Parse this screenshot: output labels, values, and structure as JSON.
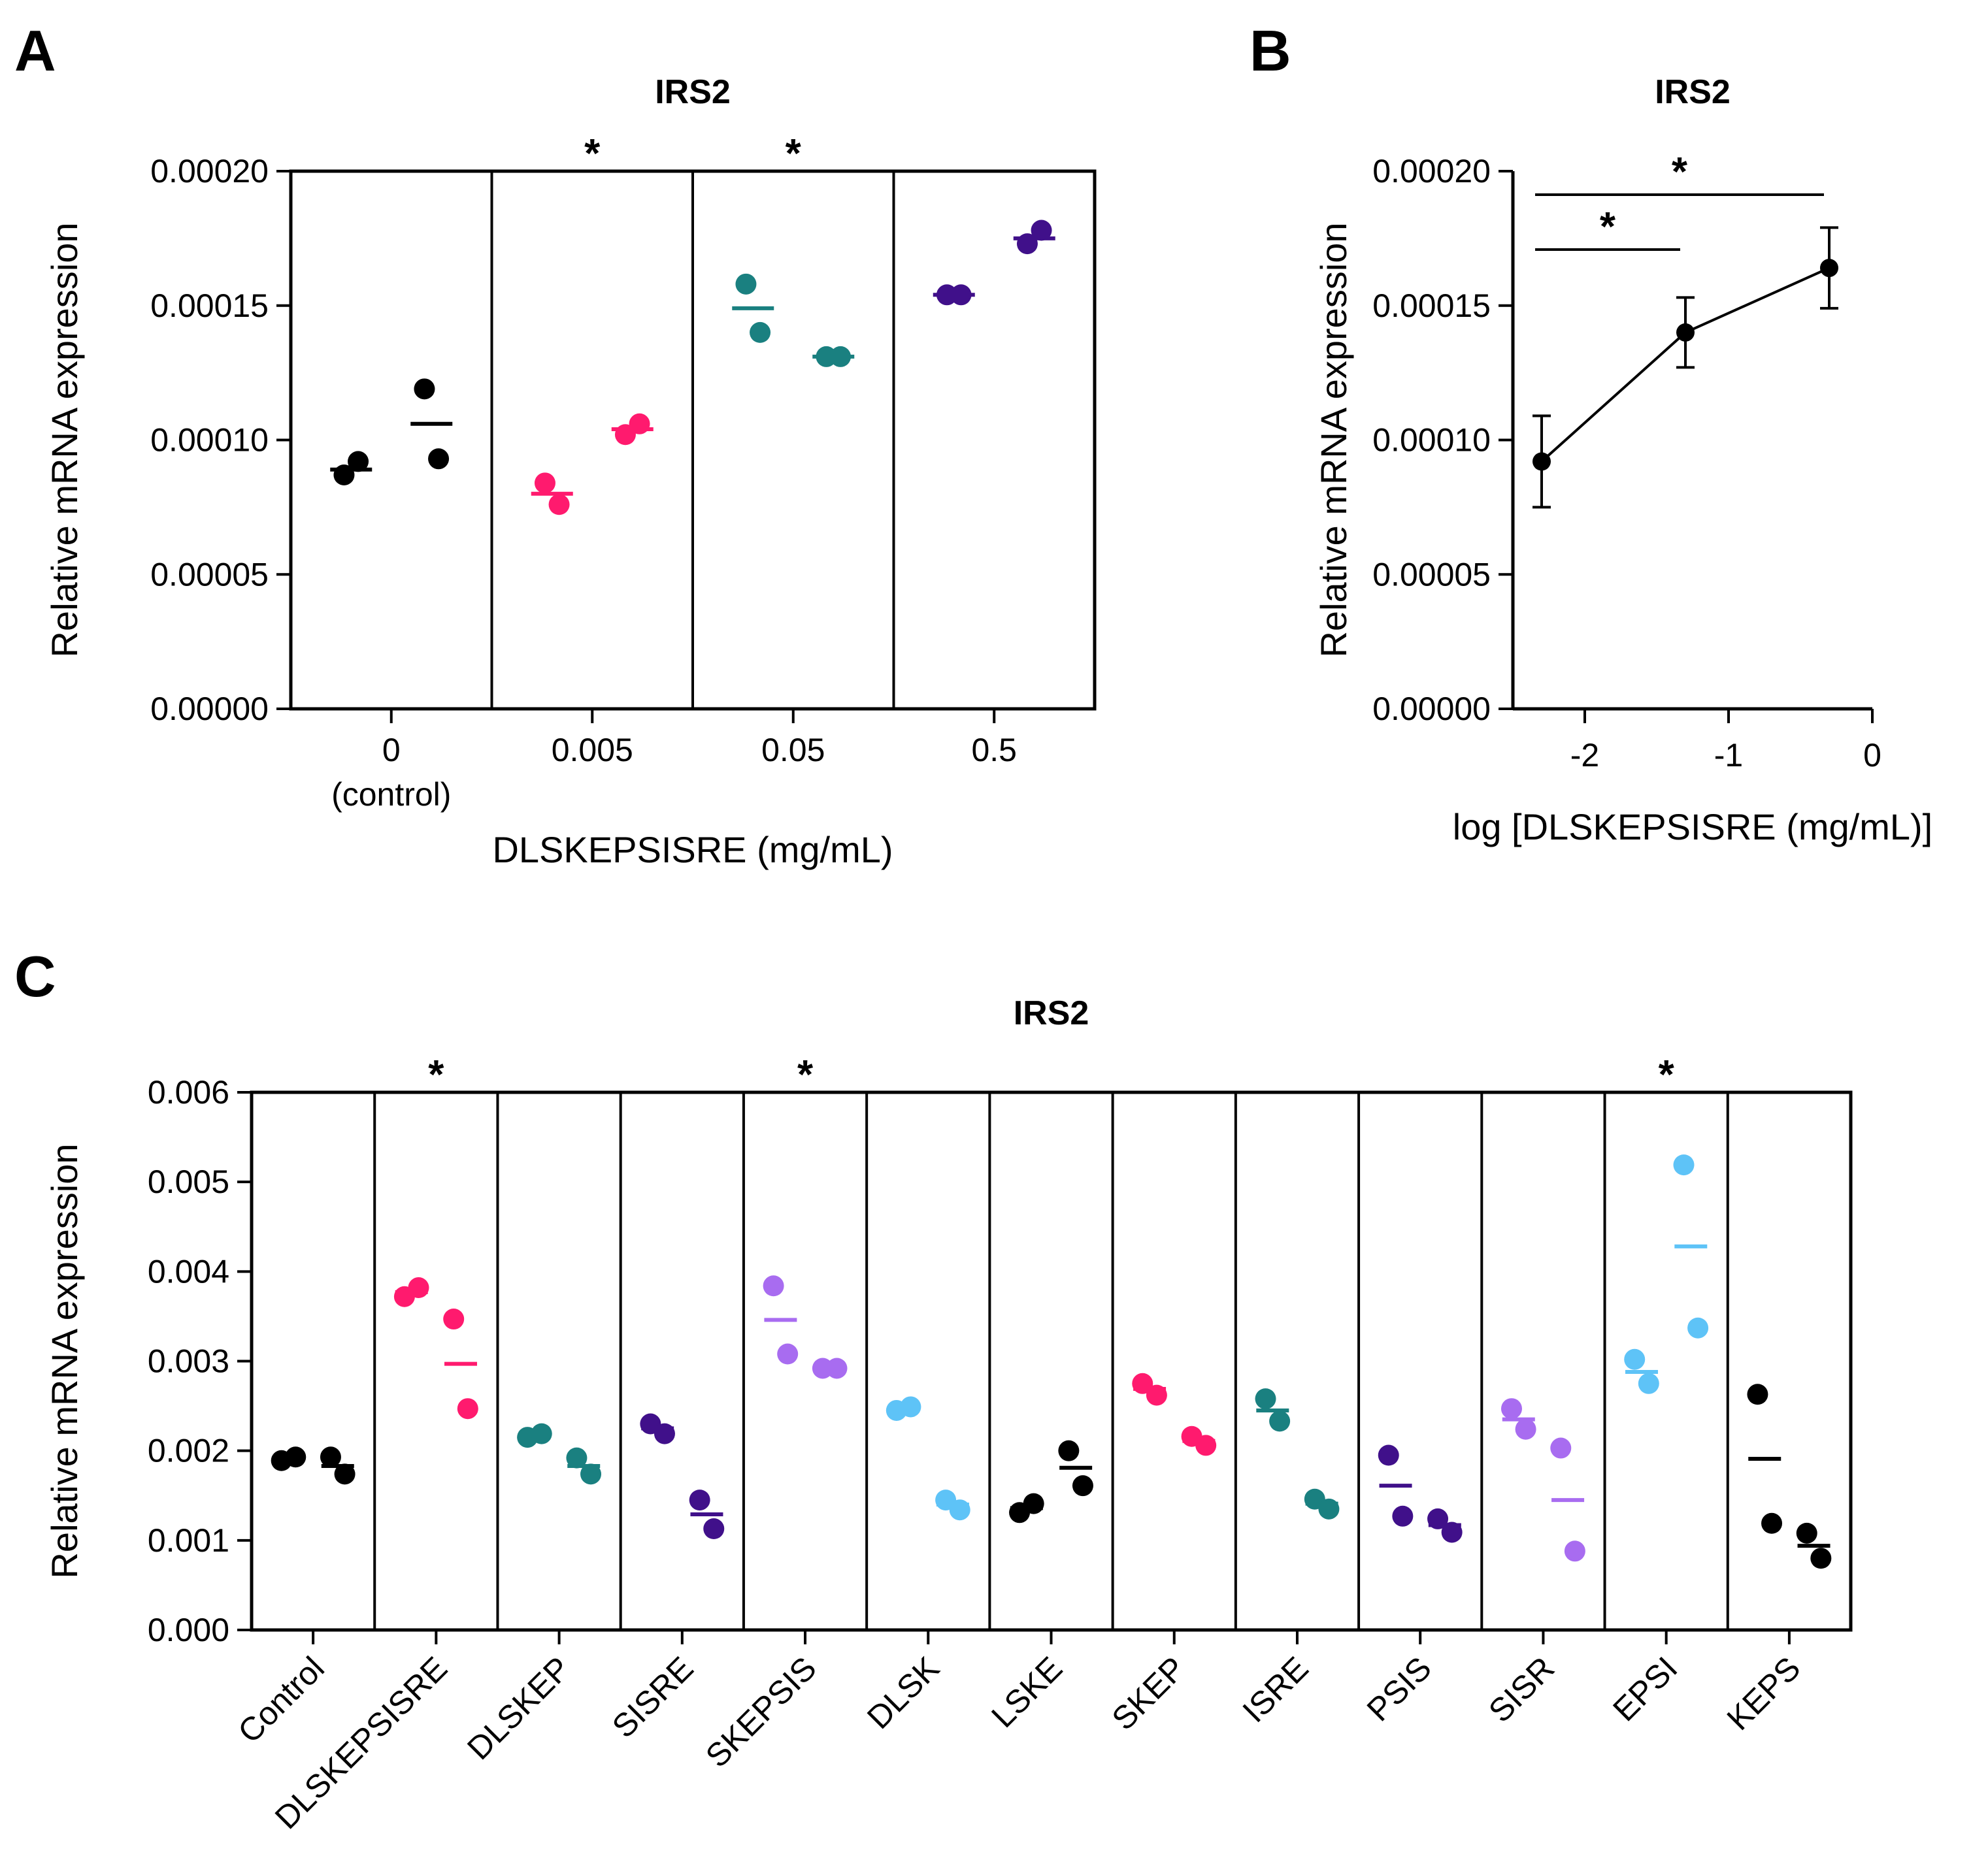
{
  "chart_data": [
    {
      "panel": "A",
      "type": "scatter",
      "title": "IRS2",
      "ylabel": "Relative mRNA expression",
      "xlabel": "DLSKEPSISRE (mg/mL)",
      "ylim": [
        0,
        0.0002
      ],
      "yticks": [
        "0.00000",
        "0.00005",
        "0.00010",
        "0.00015",
        "0.00020"
      ],
      "groups": [
        {
          "label": "0",
          "sublabel": "(control)",
          "color": "#000000",
          "significant": false,
          "replicates": [
            {
              "points": [
                8.7e-05,
                9.2e-05
              ],
              "mean": 8.9e-05
            },
            {
              "points": [
                0.000119,
                9.3e-05
              ],
              "mean": 0.000106
            }
          ]
        },
        {
          "label": "0.005",
          "color": "#ff1a6e",
          "significant": true,
          "replicates": [
            {
              "points": [
                8.4e-05,
                7.6e-05
              ],
              "mean": 8e-05
            },
            {
              "points": [
                0.000102,
                0.000106
              ],
              "mean": 0.000104
            }
          ]
        },
        {
          "label": "0.05",
          "color": "#1a8080",
          "significant": true,
          "replicates": [
            {
              "points": [
                0.000158,
                0.00014
              ],
              "mean": 0.000149
            },
            {
              "points": [
                0.000131,
                0.000131
              ],
              "mean": 0.000131
            }
          ]
        },
        {
          "label": "0.5",
          "color": "#40108a",
          "significant": false,
          "replicates": [
            {
              "points": [
                0.000154,
                0.000154
              ],
              "mean": 0.000154
            },
            {
              "points": [
                0.000173,
                0.000178
              ],
              "mean": 0.000175
            }
          ]
        }
      ],
      "significance_mark": "*"
    },
    {
      "panel": "B",
      "type": "line",
      "title": "IRS2",
      "ylabel": "Relative mRNA expression",
      "xlabel": "log [DLSKEPSISRE (mg/mL)]",
      "ylim": [
        0,
        0.0002
      ],
      "xlim": [
        -2.5,
        0
      ],
      "yticks": [
        "0.00000",
        "0.00005",
        "0.00010",
        "0.00015",
        "0.00020"
      ],
      "xticks": [
        "-2",
        "-1",
        "0"
      ],
      "x": [
        -2.3,
        -1.3,
        -0.3
      ],
      "y": [
        9.2e-05,
        0.00014,
        0.000164
      ],
      "err": [
        1.7e-05,
        1.3e-05,
        1.5e-05
      ],
      "brackets": [
        {
          "from": -2.3,
          "to": -1.3,
          "label": "*"
        },
        {
          "from": -2.3,
          "to": -0.3,
          "label": "*"
        }
      ]
    },
    {
      "panel": "C",
      "type": "scatter",
      "title": "IRS2",
      "ylabel": "Relative mRNA expression",
      "ylim": [
        0,
        0.006
      ],
      "yticks": [
        "0.000",
        "0.001",
        "0.002",
        "0.003",
        "0.004",
        "0.005",
        "0.006"
      ],
      "groups": [
        {
          "label": "Control",
          "color": "#000000",
          "significant": false,
          "replicates": [
            {
              "points": [
                0.00189,
                0.00193
              ],
              "mean": 0.00191
            },
            {
              "points": [
                0.00193,
                0.00174
              ],
              "mean": 0.00183
            }
          ]
        },
        {
          "label": "DLSKEPSISRE",
          "color": "#ff1a6e",
          "significant": true,
          "replicates": [
            {
              "points": [
                0.00372,
                0.00382
              ],
              "mean": 0.00377
            },
            {
              "points": [
                0.00347,
                0.00247
              ],
              "mean": 0.00297
            }
          ]
        },
        {
          "label": "DLSKEP",
          "color": "#1a8080",
          "significant": false,
          "replicates": [
            {
              "points": [
                0.00215,
                0.00219
              ],
              "mean": 0.00217
            },
            {
              "points": [
                0.00192,
                0.00174
              ],
              "mean": 0.00183
            }
          ]
        },
        {
          "label": "SISRE",
          "color": "#40108a",
          "significant": false,
          "replicates": [
            {
              "points": [
                0.0023,
                0.00219
              ],
              "mean": 0.00225
            },
            {
              "points": [
                0.00145,
                0.00113
              ],
              "mean": 0.00129
            }
          ]
        },
        {
          "label": "SKEPSIS",
          "color": "#a86cf0",
          "significant": true,
          "replicates": [
            {
              "points": [
                0.00384,
                0.00308
              ],
              "mean": 0.00346
            },
            {
              "points": [
                0.00292,
                0.00292
              ],
              "mean": 0.00292
            }
          ]
        },
        {
          "label": "DLSK",
          "color": "#5ec3f7",
          "significant": false,
          "replicates": [
            {
              "points": [
                0.00245,
                0.00249
              ],
              "mean": 0.00247
            },
            {
              "points": [
                0.00145,
                0.00134
              ],
              "mean": 0.0014
            }
          ]
        },
        {
          "label": "LSKE",
          "color": "#000000",
          "significant": false,
          "replicates": [
            {
              "points": [
                0.00131,
                0.00141
              ],
              "mean": 0.00136
            },
            {
              "points": [
                0.002,
                0.00161
              ],
              "mean": 0.00181
            }
          ]
        },
        {
          "label": "SKEP",
          "color": "#ff1a6e",
          "significant": false,
          "replicates": [
            {
              "points": [
                0.00275,
                0.00262
              ],
              "mean": 0.00269
            },
            {
              "points": [
                0.00216,
                0.00206
              ],
              "mean": 0.00211
            }
          ]
        },
        {
          "label": "ISRE",
          "color": "#1a8080",
          "significant": false,
          "replicates": [
            {
              "points": [
                0.00258,
                0.00233
              ],
              "mean": 0.00245
            },
            {
              "points": [
                0.00146,
                0.00135
              ],
              "mean": 0.00141
            }
          ]
        },
        {
          "label": "PSIS",
          "color": "#40108a",
          "significant": false,
          "replicates": [
            {
              "points": [
                0.00195,
                0.00127
              ],
              "mean": 0.00161
            },
            {
              "points": [
                0.00124,
                0.00109
              ],
              "mean": 0.00117
            }
          ]
        },
        {
          "label": "SISR",
          "color": "#a86cf0",
          "significant": false,
          "replicates": [
            {
              "points": [
                0.00247,
                0.00224
              ],
              "mean": 0.00235
            },
            {
              "points": [
                0.00203,
                0.00088
              ],
              "mean": 0.00145
            }
          ]
        },
        {
          "label": "EPSI",
          "color": "#5ec3f7",
          "significant": true,
          "replicates": [
            {
              "points": [
                0.00302,
                0.00275
              ],
              "mean": 0.00288
            },
            {
              "points": [
                0.00519,
                0.00337
              ],
              "mean": 0.00428
            }
          ]
        },
        {
          "label": "KEPS",
          "color": "#000000",
          "significant": false,
          "replicates": [
            {
              "points": [
                0.00263,
                0.00119
              ],
              "mean": 0.00191
            },
            {
              "points": [
                0.00108,
                0.0008
              ],
              "mean": 0.00094
            }
          ]
        }
      ],
      "significance_mark": "*"
    }
  ],
  "panel_letters": [
    "A",
    "B",
    "C"
  ]
}
